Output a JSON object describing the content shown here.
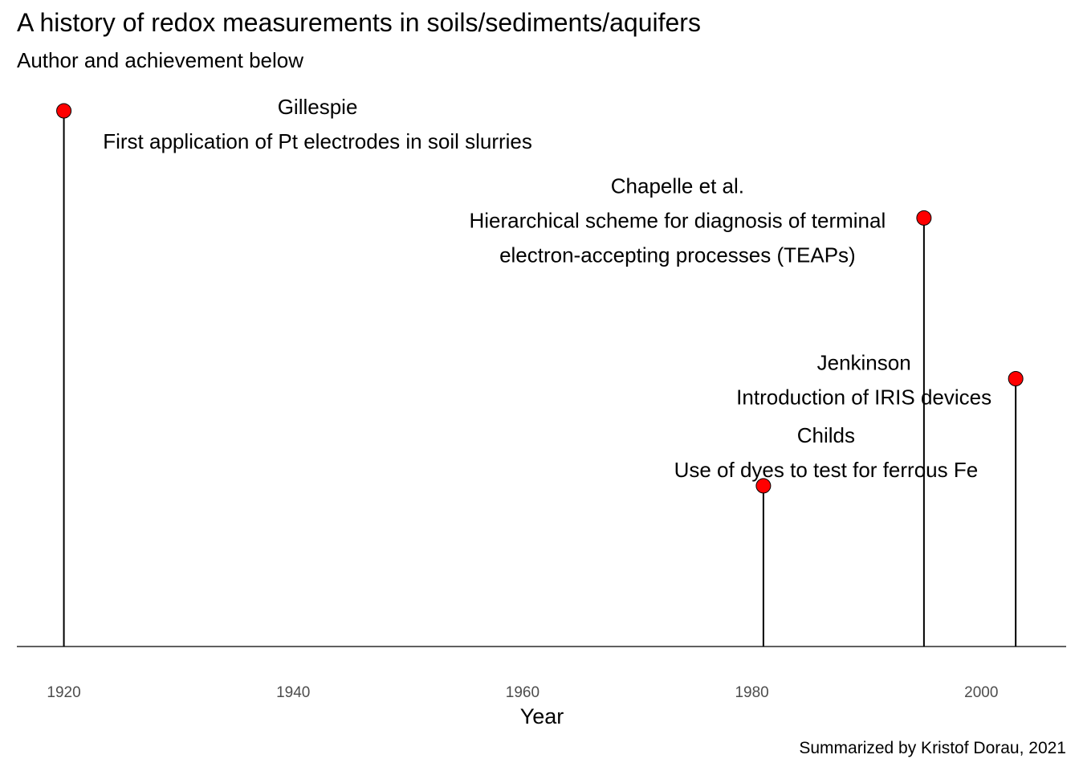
{
  "chart_data": {
    "type": "timeline",
    "title": "A history of redox measurements in soils/sediments/aquifers",
    "subtitle": "Author and achievement below",
    "caption": "Summarized by Kristof Dorau, 2021",
    "xlabel": "Year",
    "xlim": [
      1915.9,
      2007.4
    ],
    "ylim": [
      0,
      1
    ],
    "xticks": [
      1920,
      1940,
      1960,
      1980,
      2000
    ],
    "grid": false,
    "legend": "none",
    "point_color": "#ff0000",
    "events": [
      {
        "year": 1920,
        "height": 1.0,
        "author": "Gillespie",
        "achievement": [
          "First application of Pt electrodes in soil slurries"
        ]
      },
      {
        "year": 1995,
        "height": 0.8,
        "author": "Chapelle et al.",
        "achievement": [
          "Hierarchical scheme for diagnosis of terminal",
          "electron-accepting processes (TEAPs)"
        ]
      },
      {
        "year": 2003,
        "height": 0.5,
        "author": "Jenkinson",
        "achievement": [
          "Introduction of IRIS devices"
        ]
      },
      {
        "year": 1981,
        "height": 0.3,
        "author": "Childs",
        "achievement": [
          "Use of dyes to test for ferrous Fe"
        ]
      }
    ]
  }
}
